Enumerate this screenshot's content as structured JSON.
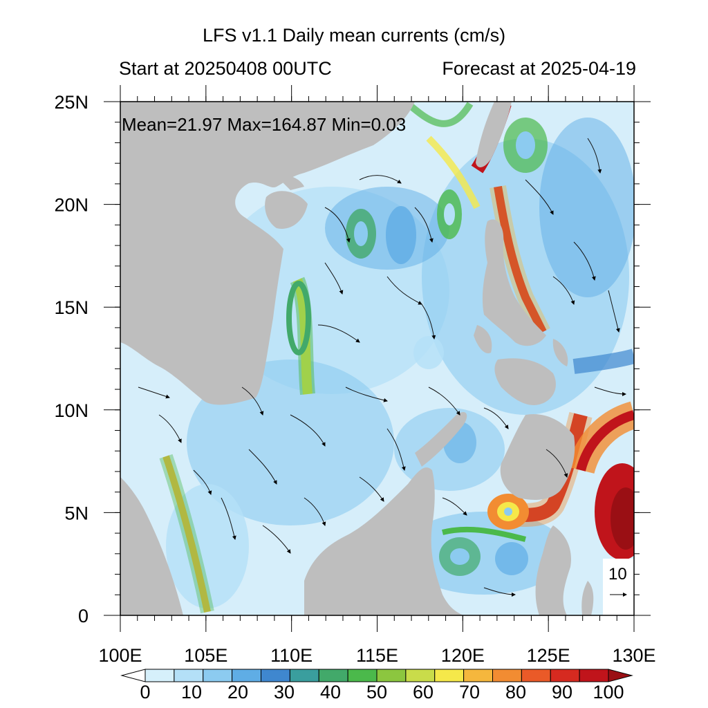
{
  "title": "LFS v1.1 Daily mean currents (cm/s)",
  "start_label": "Start at 20250408 00UTC",
  "forecast_label": "Forecast at 2025-04-19",
  "stats_text": "Mean=21.97  Max=164.87  Min=0.03",
  "map": {
    "lon_range": [
      100,
      130
    ],
    "lat_range": [
      0,
      25
    ],
    "lat_ticks": [
      "0",
      "5N",
      "10N",
      "15N",
      "20N",
      "25N"
    ],
    "lon_ticks": [
      "100E",
      "105E",
      "110E",
      "115E",
      "120E",
      "125E",
      "130E"
    ],
    "land_color": "#bebebe",
    "ocean_base_color": "#d6eefa"
  },
  "reference_vector": {
    "label": "10"
  },
  "colorbar": {
    "labels": [
      "0",
      "10",
      "20",
      "30",
      "40",
      "50",
      "60",
      "70",
      "80",
      "90",
      "100"
    ],
    "colors": [
      "#ffffff",
      "#d6f0fb",
      "#b4e0f7",
      "#8ccbf0",
      "#5fade5",
      "#3f87cf",
      "#3a9e9e",
      "#42a96a",
      "#4bb94b",
      "#8cc63f",
      "#c9dc4a",
      "#f5e84a",
      "#f5b73d",
      "#f28c32",
      "#ea5a28",
      "#d62a20",
      "#c0141b",
      "#9a0f14"
    ]
  }
}
